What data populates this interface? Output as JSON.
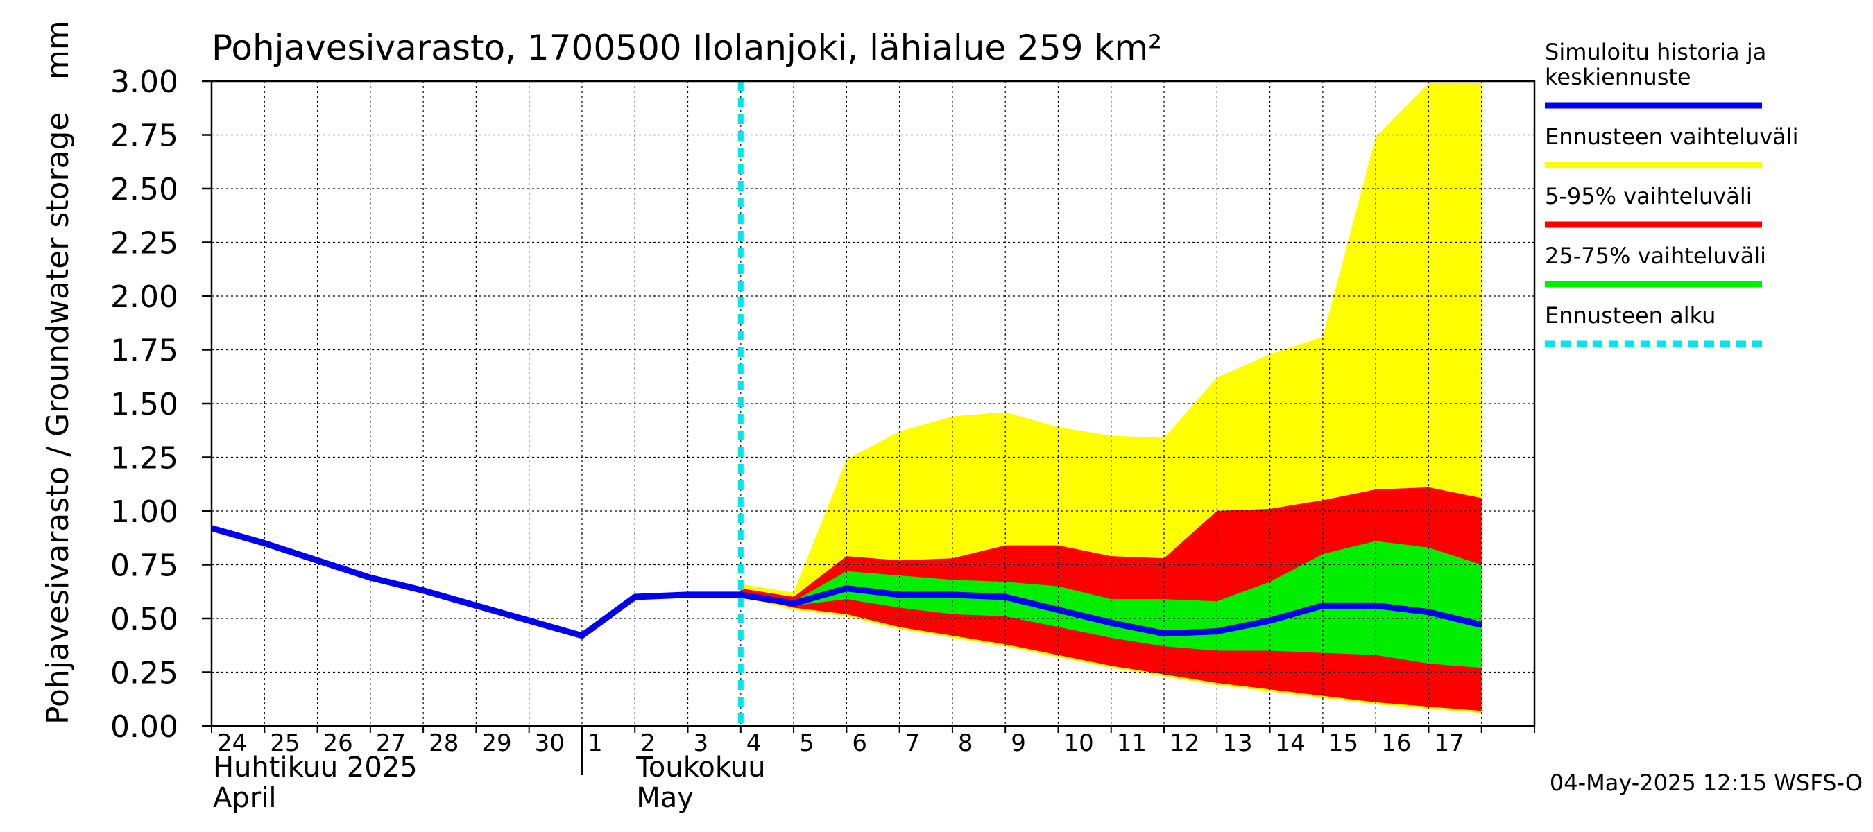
{
  "chart_data": {
    "type": "area",
    "title": "Pohjavesivarasto, 1700500 Ilolanjoki, lähialue 259 km²",
    "ylabel": "Pohjavesivarasto / Groundwater storage",
    "yunit": "mm",
    "ylim": [
      0,
      3.0
    ],
    "yticks": [
      "0.00",
      "0.25",
      "0.50",
      "0.75",
      "1.00",
      "1.25",
      "1.50",
      "1.75",
      "2.00",
      "2.25",
      "2.50",
      "2.75",
      "3.00"
    ],
    "xticks": [
      "24",
      "25",
      "26",
      "27",
      "28",
      "29",
      "30",
      "1",
      "2",
      "3",
      "4",
      "5",
      "6",
      "7",
      "8",
      "9",
      "10",
      "11",
      "12",
      "13",
      "14",
      "15",
      "16",
      "17"
    ],
    "month_labels": [
      {
        "lines": [
          "Huhtikuu  2025",
          "April"
        ]
      },
      {
        "lines": [
          "Toukokuu",
          "May"
        ]
      }
    ],
    "grid": true,
    "forecast_start_day": 10.0,
    "x_days": [
      0,
      1,
      2,
      3,
      4,
      5,
      6,
      7,
      8,
      9,
      10,
      11,
      12,
      13,
      14,
      15,
      16,
      17,
      18,
      19,
      20,
      21,
      22,
      23,
      24
    ],
    "series": [
      {
        "name": "Simuloitu historia ja keskiennuste",
        "x": [
          0,
          1,
          2,
          3,
          4,
          5,
          6,
          7,
          8,
          9,
          10,
          11,
          12,
          13,
          14,
          15,
          16,
          17,
          18,
          19,
          20,
          21,
          22,
          23,
          24
        ],
        "values": [
          0.92,
          0.85,
          0.77,
          0.69,
          0.63,
          0.56,
          0.49,
          0.42,
          0.6,
          0.61,
          0.61,
          0.57,
          0.64,
          0.61,
          0.61,
          0.6,
          0.54,
          0.48,
          0.43,
          0.44,
          0.49,
          0.56,
          0.56,
          0.53,
          0.47
        ]
      }
    ],
    "bands": [
      {
        "name": "Ennusteen vaihteluväli",
        "x": [
          10,
          11,
          12,
          13,
          14,
          15,
          16,
          17,
          18,
          19,
          20,
          21,
          22,
          23,
          24
        ],
        "upper": [
          0.66,
          0.62,
          1.24,
          1.37,
          1.44,
          1.46,
          1.39,
          1.35,
          1.34,
          1.62,
          1.73,
          1.81,
          2.74,
          2.99,
          2.99
        ],
        "lower": [
          0.6,
          0.54,
          0.51,
          0.45,
          0.41,
          0.37,
          0.32,
          0.27,
          0.23,
          0.19,
          0.16,
          0.13,
          0.1,
          0.08,
          0.06
        ]
      },
      {
        "name": "5-95% vaihteluväli",
        "x": [
          10,
          11,
          12,
          13,
          14,
          15,
          16,
          17,
          18,
          19,
          20,
          21,
          22,
          23,
          24
        ],
        "upper": [
          0.64,
          0.6,
          0.79,
          0.77,
          0.78,
          0.84,
          0.84,
          0.79,
          0.78,
          1.0,
          1.01,
          1.05,
          1.1,
          1.11,
          1.06
        ],
        "lower": [
          0.61,
          0.55,
          0.52,
          0.46,
          0.42,
          0.38,
          0.33,
          0.28,
          0.24,
          0.2,
          0.17,
          0.14,
          0.11,
          0.09,
          0.07
        ]
      },
      {
        "name": "25-75% vaihteluväli",
        "x": [
          10,
          11,
          12,
          13,
          14,
          15,
          16,
          17,
          18,
          19,
          20,
          21,
          22,
          23,
          24
        ],
        "upper": [
          0.62,
          0.58,
          0.72,
          0.7,
          0.68,
          0.67,
          0.65,
          0.59,
          0.59,
          0.58,
          0.67,
          0.8,
          0.86,
          0.83,
          0.75
        ],
        "lower": [
          0.61,
          0.56,
          0.59,
          0.55,
          0.52,
          0.51,
          0.46,
          0.41,
          0.37,
          0.35,
          0.35,
          0.34,
          0.33,
          0.29,
          0.27
        ]
      }
    ],
    "colors": {
      "history_line": "#0000ee",
      "range_full": "#ffff00",
      "range_5_95": "#ff0000",
      "range_25_75": "#00ee00",
      "forecast_start": "#00e5ee"
    },
    "legend": {
      "position": "right",
      "items": [
        {
          "label": "Simuloitu historia ja keskiennuste",
          "lines": [
            "Simuloitu historia ja",
            "keskiennuste"
          ],
          "color": "#0000ee",
          "style": "solid"
        },
        {
          "label": "Ennusteen vaihteluväli",
          "lines": [
            "Ennusteen vaihteluväli"
          ],
          "color": "#ffff00",
          "style": "solid"
        },
        {
          "label": "5-95% vaihteluväli",
          "lines": [
            "5-95% vaihteluväli"
          ],
          "color": "#ff0000",
          "style": "solid"
        },
        {
          "label": "25-75% vaihteluväli",
          "lines": [
            "25-75% vaihteluväli"
          ],
          "color": "#00ee00",
          "style": "solid"
        },
        {
          "label": "Ennusteen alku",
          "lines": [
            "Ennusteen alku"
          ],
          "color": "#00e5ee",
          "style": "dashed"
        }
      ]
    },
    "footer": "04-May-2025 12:15 WSFS-O"
  }
}
